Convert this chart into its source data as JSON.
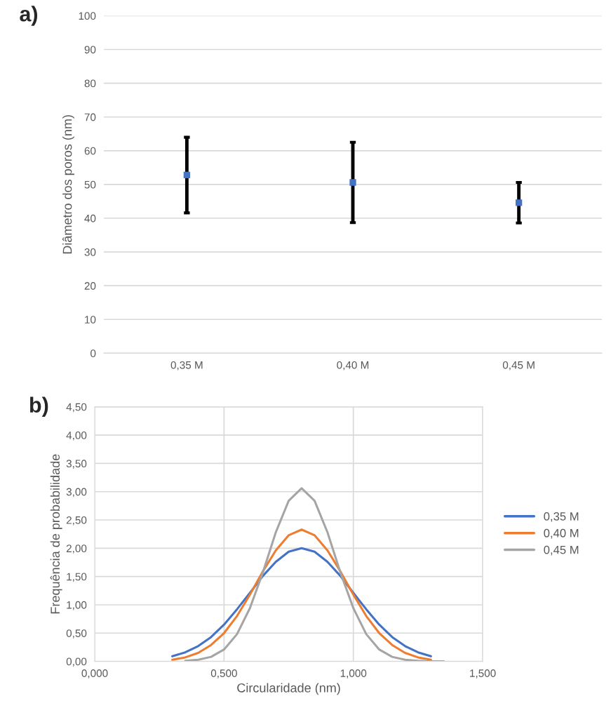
{
  "chart_data": [
    {
      "type": "scatter",
      "title": "a)",
      "ylabel": "Diâmetro dos poros (nm)",
      "categories": [
        "0,35 M",
        "0,40 M",
        "0,45 M"
      ],
      "series": [
        {
          "color": "#4472c4",
          "values": [
            52.8,
            50.6,
            44.6
          ],
          "errors": [
            11.2,
            11.9,
            6.0
          ]
        }
      ],
      "ylim": [
        0,
        100
      ],
      "yticks": [
        0,
        10,
        20,
        30,
        40,
        50,
        60,
        70,
        80,
        90,
        100
      ],
      "grid": "y",
      "legend": false,
      "marker": "square"
    },
    {
      "type": "line",
      "title": "b)",
      "xlabel": "Circularidade (nm)",
      "ylabel": "Frequência de probabilidade",
      "series": [
        {
          "name": "0,35 M",
          "color": "#4472c4",
          "x": [
            0.3,
            0.35,
            0.4,
            0.45,
            0.5,
            0.55,
            0.6,
            0.65,
            0.7,
            0.75,
            0.8,
            0.85,
            0.9,
            0.95,
            1.0,
            1.05,
            1.1,
            1.15,
            1.2,
            1.25,
            1.3
          ],
          "values": [
            0.09,
            0.16,
            0.27,
            0.43,
            0.65,
            0.92,
            1.21,
            1.51,
            1.76,
            1.94,
            2.0,
            1.94,
            1.76,
            1.51,
            1.21,
            0.92,
            0.65,
            0.43,
            0.27,
            0.16,
            0.09
          ]
        },
        {
          "name": "0,40 M",
          "color": "#ed7d31",
          "x": [
            0.3,
            0.35,
            0.4,
            0.45,
            0.5,
            0.55,
            0.6,
            0.65,
            0.7,
            0.75,
            0.8,
            0.85,
            0.9,
            0.95,
            1.0,
            1.05,
            1.1,
            1.15,
            1.2,
            1.25,
            1.3
          ],
          "values": [
            0.03,
            0.07,
            0.15,
            0.29,
            0.5,
            0.8,
            1.18,
            1.59,
            1.96,
            2.23,
            2.33,
            2.23,
            1.96,
            1.59,
            1.18,
            0.8,
            0.5,
            0.29,
            0.15,
            0.07,
            0.03
          ]
        },
        {
          "name": "0,45 M",
          "color": "#a5a5a5",
          "x": [
            0.35,
            0.4,
            0.45,
            0.5,
            0.55,
            0.6,
            0.65,
            0.7,
            0.75,
            0.8,
            0.85,
            0.9,
            0.95,
            1.0,
            1.05,
            1.1,
            1.15,
            1.2,
            1.25,
            1.3,
            1.35
          ],
          "values": [
            0.01,
            0.03,
            0.08,
            0.21,
            0.48,
            0.94,
            1.57,
            2.28,
            2.84,
            3.06,
            2.84,
            2.28,
            1.57,
            0.94,
            0.48,
            0.21,
            0.08,
            0.03,
            0.01,
            0.0,
            0.0
          ]
        }
      ],
      "xlim": [
        0,
        1.5
      ],
      "xticks": [
        {
          "value": 0,
          "label": "0,000"
        },
        {
          "value": 0.5,
          "label": "0,500"
        },
        {
          "value": 1.0,
          "label": "1,000"
        },
        {
          "value": 1.5,
          "label": "1,500"
        }
      ],
      "ylim": [
        0,
        4.5
      ],
      "yticks": [
        {
          "value": 0,
          "label": "0,00"
        },
        {
          "value": 0.5,
          "label": "0,50"
        },
        {
          "value": 1.0,
          "label": "1,00"
        },
        {
          "value": 1.5,
          "label": "1,50"
        },
        {
          "value": 2.0,
          "label": "2,00"
        },
        {
          "value": 2.5,
          "label": "2,50"
        },
        {
          "value": 3.0,
          "label": "3,00"
        },
        {
          "value": 3.5,
          "label": "3,50"
        },
        {
          "value": 4.0,
          "label": "4,00"
        },
        {
          "value": 4.5,
          "label": "4,50"
        }
      ],
      "grid": true,
      "legend": "right"
    }
  ]
}
